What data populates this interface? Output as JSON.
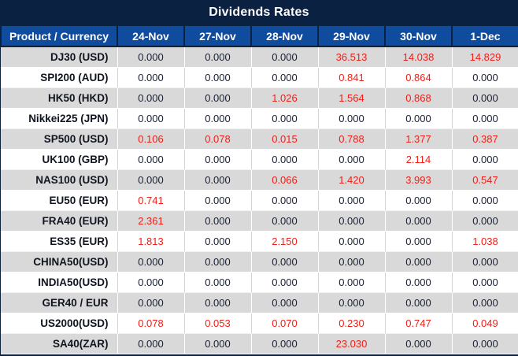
{
  "title": "Dividends Rates",
  "colors": {
    "title_bar_bg": "#0b2142",
    "header_bg": "#0f4c9e",
    "header_text": "#ffffff",
    "row_gray_bg": "#d9d9d9",
    "row_white_bg": "#ffffff",
    "value_text": "#1a2030",
    "value_nonzero_red": "#f01e17"
  },
  "chart_data": {
    "type": "table",
    "title": "Dividends Rates",
    "product_header": "Product / Currency",
    "date_columns": [
      "24-Nov",
      "27-Nov",
      "28-Nov",
      "29-Nov",
      "30-Nov",
      "1-Dec"
    ],
    "rows": [
      {
        "product": "DJ30 (USD)",
        "values": [
          "0.000",
          "0.000",
          "0.000",
          "36.513",
          "14.038",
          "14.829"
        ]
      },
      {
        "product": "SPI200 (AUD)",
        "values": [
          "0.000",
          "0.000",
          "0.000",
          "0.841",
          "0.864",
          "0.000"
        ]
      },
      {
        "product": "HK50 (HKD)",
        "values": [
          "0.000",
          "0.000",
          "1.026",
          "1.564",
          "0.868",
          "0.000"
        ]
      },
      {
        "product": "Nikkei225 (JPN)",
        "values": [
          "0.000",
          "0.000",
          "0.000",
          "0.000",
          "0.000",
          "0.000"
        ]
      },
      {
        "product": "SP500 (USD)",
        "values": [
          "0.106",
          "0.078",
          "0.015",
          "0.788",
          "1.377",
          "0.387"
        ]
      },
      {
        "product": "UK100 (GBP)",
        "values": [
          "0.000",
          "0.000",
          "0.000",
          "0.000",
          "2.114",
          "0.000"
        ]
      },
      {
        "product": "NAS100 (USD)",
        "values": [
          "0.000",
          "0.000",
          "0.066",
          "1.420",
          "3.993",
          "0.547"
        ]
      },
      {
        "product": "EU50 (EUR)",
        "values": [
          "0.741",
          "0.000",
          "0.000",
          "0.000",
          "0.000",
          "0.000"
        ]
      },
      {
        "product": "FRA40 (EUR)",
        "values": [
          "2.361",
          "0.000",
          "0.000",
          "0.000",
          "0.000",
          "0.000"
        ]
      },
      {
        "product": "ES35 (EUR)",
        "values": [
          "1.813",
          "0.000",
          "2.150",
          "0.000",
          "0.000",
          "1.038"
        ]
      },
      {
        "product": "CHINA50(USD)",
        "values": [
          "0.000",
          "0.000",
          "0.000",
          "0.000",
          "0.000",
          "0.000"
        ]
      },
      {
        "product": "INDIA50(USD)",
        "values": [
          "0.000",
          "0.000",
          "0.000",
          "0.000",
          "0.000",
          "0.000"
        ]
      },
      {
        "product": "GER40 / EUR",
        "values": [
          "0.000",
          "0.000",
          "0.000",
          "0.000",
          "0.000",
          "0.000"
        ]
      },
      {
        "product": "US2000(USD)",
        "values": [
          "0.078",
          "0.053",
          "0.070",
          "0.230",
          "0.747",
          "0.049"
        ]
      },
      {
        "product": "SA40(ZAR)",
        "values": [
          "0.000",
          "0.000",
          "0.000",
          "23.030",
          "0.000",
          "0.000"
        ]
      }
    ],
    "style_rule": "non-zero values rendered in red",
    "row_striping": "odd rows gray, even rows white"
  }
}
